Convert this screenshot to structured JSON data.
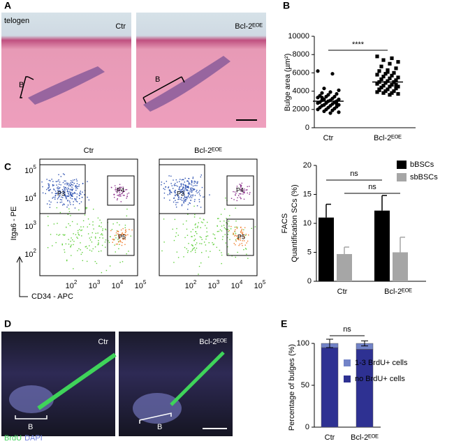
{
  "panel_labels": [
    "A",
    "B",
    "C",
    "D",
    "E"
  ],
  "panel_a": {
    "stage": "telogen",
    "left_label": "Ctr",
    "right_label": "Bcl-2ᴱᴼᴱ",
    "bulge_marker": "B"
  },
  "flow": {
    "titles": [
      "Ctr",
      "Bcl-2ᴱᴼᴱ"
    ],
    "tick_base": "10",
    "tick_exponents": [
      "2",
      "3",
      "4",
      "5"
    ],
    "ylabel": "Itga6 - PE",
    "xlabel": "CD34 - APC",
    "gates": [
      "P3",
      "P4",
      "P5"
    ]
  },
  "panel_d": {
    "left_label": "Ctr",
    "right_label": "Bcl-2ᴱᴼᴱ",
    "bulge_marker": "B",
    "stain1": "BrdU",
    "stain2": "DAPI"
  },
  "chart_data": [
    {
      "type": "dot",
      "ylabel": "Bulge area (µm²)",
      "categories": [
        "Ctr",
        "Bcl-2ᴱᴼᴱ"
      ],
      "values": [
        [
          6200,
          5900,
          4300,
          4100,
          3900,
          3800,
          3700,
          3600,
          3500,
          3400,
          3400,
          3300,
          3200,
          3100,
          3100,
          3000,
          3000,
          2900,
          2900,
          2800,
          2800,
          2700,
          2700,
          2600,
          2500,
          2500,
          2400,
          2400,
          2300,
          2200,
          2200,
          2100,
          2000,
          2000,
          1900,
          1800,
          1700,
          1600,
          3300,
          2600
        ],
        [
          7800,
          7600,
          7400,
          7200,
          7000,
          6700,
          6500,
          6300,
          6200,
          6000,
          5900,
          5800,
          5700,
          5600,
          5500,
          5400,
          5300,
          5200,
          5100,
          5000,
          5000,
          4900,
          4800,
          4700,
          4600,
          4500,
          4500,
          4400,
          4300,
          4200,
          4100,
          4000,
          4000,
          3900,
          3800,
          3800,
          3700,
          3600,
          5300,
          4700,
          6100,
          4200
        ]
      ],
      "means": [
        2900,
        5000
      ],
      "annotation": "****",
      "color": "#000000",
      "ylim": [
        0,
        10000
      ],
      "yticks": [
        0,
        2000,
        4000,
        6000,
        8000,
        10000
      ]
    },
    {
      "type": "bar",
      "ylabel": "FACS",
      "ylabel2": "Quantification SCs (%)",
      "categories": [
        "Ctr",
        "Bcl-2ᴱᴼᴱ"
      ],
      "series": [
        {
          "name": "bBSCs",
          "color": "#000000",
          "values": [
            11,
            12.2
          ],
          "errors": [
            2.3,
            2.6
          ]
        },
        {
          "name": "sbBSCs",
          "color": "#a6a6a6",
          "values": [
            4.7,
            5.0
          ],
          "errors": [
            1.2,
            2.6
          ]
        }
      ],
      "annotations": [
        "ns",
        "ns"
      ],
      "ylim": [
        0,
        20
      ],
      "yticks": [
        0,
        5,
        10,
        15,
        20
      ]
    },
    {
      "type": "stacked_bar",
      "ylabel": "Percentage of bulges (%)",
      "categories": [
        "Ctr",
        "Bcl-2ᴱᴼᴱ"
      ],
      "series": [
        {
          "name": "no BrdU+ cells",
          "color": "#2e3192",
          "values": [
            95,
            93
          ]
        },
        {
          "name": "1-3 BrdU+ cells",
          "color": "#7283c8",
          "values": [
            5,
            7
          ],
          "errors": [
            5,
            3
          ]
        }
      ],
      "annotation": "ns",
      "ylim": [
        0,
        100
      ],
      "yticks": [
        0,
        50,
        100
      ]
    }
  ]
}
